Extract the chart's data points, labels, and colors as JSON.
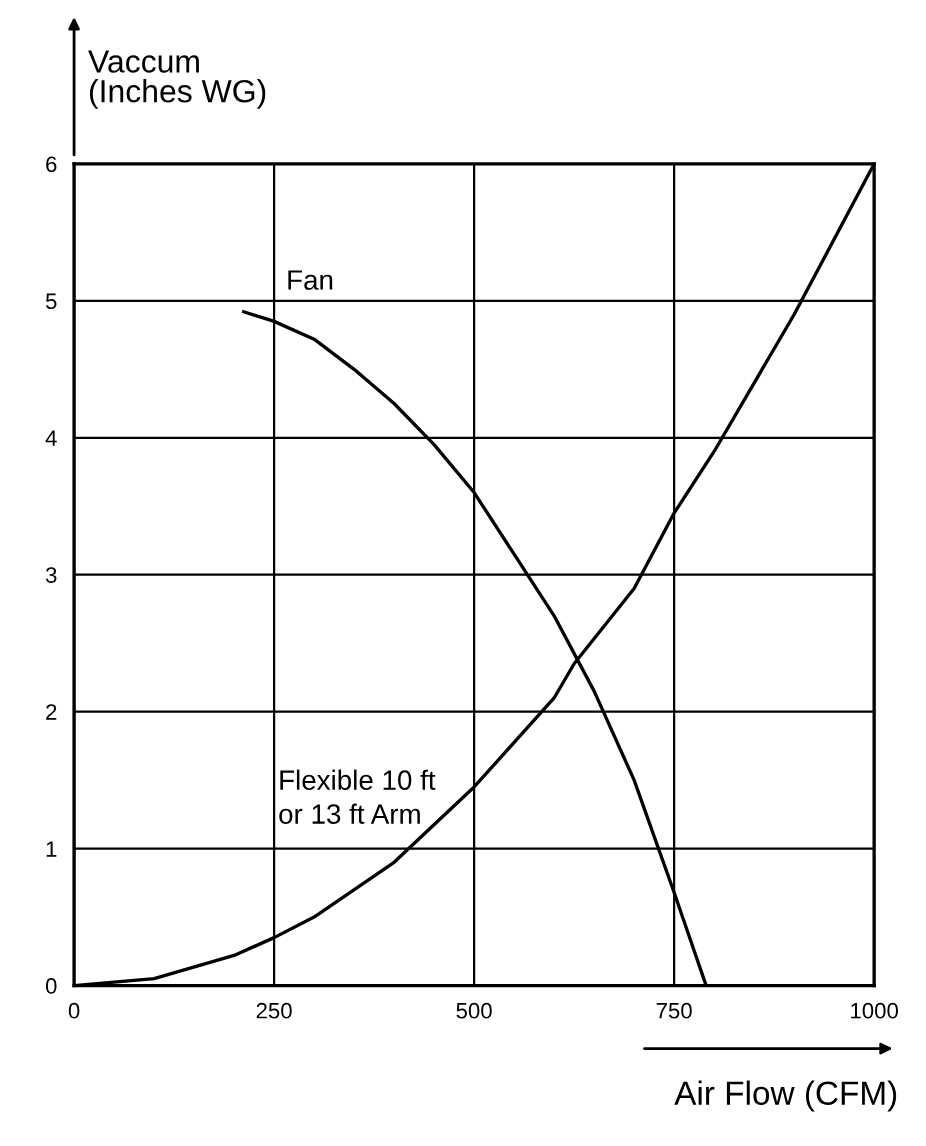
{
  "chart_data": {
    "type": "line",
    "xlabel": "Air Flow (CFM)",
    "ylabel": "Vaccum\n(Inches WG)",
    "x": [
      0,
      100,
      200,
      250,
      300,
      400,
      500,
      600,
      625,
      700,
      750,
      800,
      900,
      1000
    ],
    "series": [
      {
        "name": "Fan",
        "color": "#000000",
        "x": [
          212,
          250,
          300,
          350,
          400,
          450,
          500,
          550,
          600,
          650,
          700,
          750,
          790
        ],
        "values": [
          4.92,
          4.85,
          4.72,
          4.5,
          4.25,
          3.95,
          3.6,
          3.15,
          2.7,
          2.15,
          1.5,
          0.68,
          0
        ]
      },
      {
        "name": "Flexible 10 ft\nor 13 ft Arm",
        "color": "#000000",
        "values": [
          0,
          0.05,
          0.22,
          0.35,
          0.5,
          0.9,
          1.45,
          2.1,
          2.35,
          2.9,
          3.45,
          3.9,
          4.9,
          6.0
        ]
      }
    ],
    "xlim": [
      0,
      1000
    ],
    "ylim": [
      0,
      6
    ],
    "xticks": [
      0,
      250,
      500,
      750,
      1000
    ],
    "yticks": [
      0,
      1,
      2,
      3,
      4,
      5,
      6
    ],
    "grid": true,
    "marker": "none",
    "line_style": "solid",
    "legend": false
  }
}
